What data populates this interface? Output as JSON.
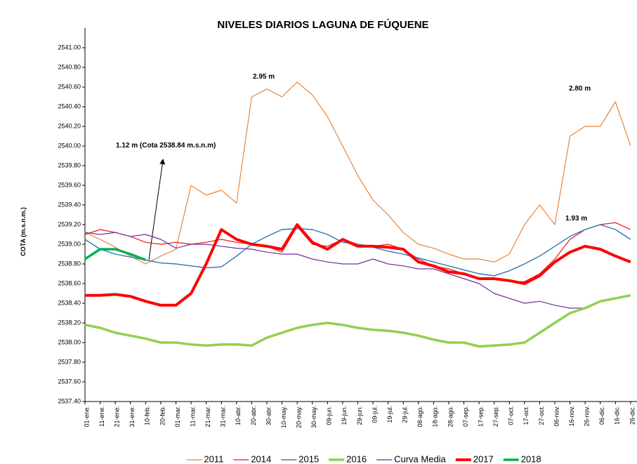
{
  "chart_data": {
    "type": "line",
    "title": "NIVELES DIARIOS LAGUNA DE FÚQUENE",
    "y_label": "COTA (m.s.n.m.)",
    "categories": [
      "01-ene.",
      "11-ene.",
      "21-ene.",
      "31-ene.",
      "10-feb.",
      "20-feb.",
      "01-mar.",
      "11-mar.",
      "21-mar.",
      "31-mar.",
      "10-abr.",
      "20-abr.",
      "30-abr.",
      "10-may.",
      "20-may.",
      "30-may.",
      "09-jun.",
      "19-jun.",
      "29-jun.",
      "09-jul.",
      "19-jul.",
      "29-jul.",
      "08-ago.",
      "18-ago.",
      "28-ago.",
      "07-sep.",
      "17-sep.",
      "27-sep.",
      "07-oct.",
      "17-oct.",
      "27-oct.",
      "06-nov.",
      "16-nov.",
      "26-nov.",
      "06-dic.",
      "16-dic.",
      "26-dic."
    ],
    "ylim": [
      2537.4,
      2541.0
    ],
    "yticks": [
      {
        "value": 2537.4,
        "label": "2537.40"
      },
      {
        "value": 2537.6,
        "label": "2537.60"
      },
      {
        "value": 2537.8,
        "label": "2537.80"
      },
      {
        "value": 2538.0,
        "label": "2538.00"
      },
      {
        "value": 2538.2,
        "label": "2538.20"
      },
      {
        "value": 2538.4,
        "label": "2538.40"
      },
      {
        "value": 2538.6,
        "label": "2538.60"
      },
      {
        "value": 2538.8,
        "label": "2538.80"
      },
      {
        "value": 2539.0,
        "label": "2539.00"
      },
      {
        "value": 2539.2,
        "label": "2539.20"
      },
      {
        "value": 2539.4,
        "label": "2539.40"
      },
      {
        "value": 2539.6,
        "label": "2539.60"
      },
      {
        "value": 2539.8,
        "label": "2539.80"
      },
      {
        "value": 2540.0,
        "label": "2540.00"
      },
      {
        "value": 2540.2,
        "label": "2540.20"
      },
      {
        "value": 2540.4,
        "label": "2540.40"
      },
      {
        "value": 2540.6,
        "label": "2540.60"
      },
      {
        "value": 2540.8,
        "label": "2540.80"
      },
      {
        "value": 2541.0,
        "label": "2541.00"
      }
    ],
    "grid": false,
    "legend": "bottom",
    "series": [
      {
        "name": "2011",
        "color": "#e8853a",
        "line_width": 1.2,
        "values": [
          2539.12,
          2539.05,
          2538.97,
          2538.88,
          2538.8,
          2538.88,
          2538.95,
          2539.6,
          2539.5,
          2539.55,
          2539.42,
          2540.5,
          2540.58,
          2540.5,
          2540.65,
          2540.52,
          2540.3,
          2540.0,
          2539.7,
          2539.45,
          2539.3,
          2539.12,
          2539.0,
          2538.96,
          2538.9,
          2538.85,
          2538.85,
          2538.82,
          2538.9,
          2539.2,
          2539.4,
          2539.2,
          2540.1,
          2540.2,
          2540.2,
          2540.45,
          2540.0
        ]
      },
      {
        "name": "2014",
        "color": "#e8171b",
        "line_width": 1.2,
        "values": [
          2539.1,
          2539.15,
          2539.12,
          2539.08,
          2539.02,
          2539.0,
          2539.02,
          2539.0,
          2539.02,
          2539.05,
          2539.02,
          2539.0,
          2538.98,
          2538.92,
          2539.18,
          2539.0,
          2538.98,
          2539.05,
          2539.0,
          2538.98,
          2539.0,
          2538.95,
          2538.85,
          2538.78,
          2538.75,
          2538.7,
          2538.65,
          2538.65,
          2538.62,
          2538.62,
          2538.7,
          2538.85,
          2539.05,
          2539.15,
          2539.2,
          2539.22,
          2539.15
        ]
      },
      {
        "name": "2015",
        "color": "#7030a0",
        "line_width": 1.2,
        "values": [
          2539.12,
          2539.1,
          2539.12,
          2539.08,
          2539.1,
          2539.05,
          2538.96,
          2539.0,
          2539.0,
          2538.98,
          2538.96,
          2538.95,
          2538.92,
          2538.9,
          2538.9,
          2538.85,
          2538.82,
          2538.8,
          2538.8,
          2538.85,
          2538.8,
          2538.78,
          2538.75,
          2538.75,
          2538.7,
          2538.65,
          2538.6,
          2538.5,
          2538.45,
          2538.4,
          2538.42,
          2538.38,
          2538.35,
          2538.35,
          null,
          null,
          null
        ]
      },
      {
        "name": "2016",
        "color": "#92d050",
        "line_width": 3.5,
        "values": [
          2538.18,
          2538.15,
          2538.1,
          2538.07,
          2538.04,
          2538.0,
          2538.0,
          2537.98,
          2537.97,
          2537.98,
          2537.98,
          2537.97,
          2538.05,
          2538.1,
          2538.15,
          2538.18,
          2538.2,
          2538.18,
          2538.15,
          2538.13,
          2538.12,
          2538.1,
          2538.07,
          2538.03,
          2538.0,
          2538.0,
          2537.96,
          2537.97,
          2537.98,
          2538.0,
          2538.1,
          2538.2,
          2538.3,
          2538.35,
          2538.42,
          2538.45,
          2538.48
        ]
      },
      {
        "name": "Curva Media",
        "color": "#2e75b6",
        "line_width": 1.4,
        "values": [
          2539.05,
          2538.95,
          2538.9,
          2538.87,
          2538.84,
          2538.81,
          2538.8,
          2538.78,
          2538.76,
          2538.77,
          2538.88,
          2539.0,
          2539.08,
          2539.15,
          2539.16,
          2539.15,
          2539.1,
          2539.02,
          2539.0,
          2538.97,
          2538.93,
          2538.9,
          2538.86,
          2538.82,
          2538.78,
          2538.74,
          2538.7,
          2538.68,
          2538.73,
          2538.8,
          2538.88,
          2538.98,
          2539.08,
          2539.15,
          2539.2,
          2539.15,
          2539.05
        ]
      },
      {
        "name": "2017",
        "color": "#ff0000",
        "line_width": 4,
        "values": [
          2538.48,
          2538.48,
          2538.49,
          2538.47,
          2538.42,
          2538.38,
          2538.38,
          2538.5,
          2538.8,
          2539.15,
          2539.05,
          2539.0,
          2538.98,
          2538.95,
          2539.2,
          2539.02,
          2538.95,
          2539.05,
          2538.98,
          2538.98,
          2538.97,
          2538.95,
          2538.82,
          2538.78,
          2538.72,
          2538.7,
          2538.65,
          2538.65,
          2538.63,
          2538.6,
          2538.68,
          2538.82,
          2538.92,
          2538.98,
          2538.95,
          2538.88,
          2538.82
        ]
      },
      {
        "name": "2018",
        "color": "#00b050",
        "line_width": 3.5,
        "values": [
          2538.85,
          2538.95,
          2538.95,
          2538.9,
          2538.84,
          null,
          null,
          null,
          null,
          null,
          null,
          null,
          null,
          null,
          null,
          null,
          null,
          null,
          null,
          null,
          null,
          null,
          null,
          null,
          null,
          null,
          null,
          null,
          null,
          null,
          null,
          null,
          null,
          null,
          null,
          null,
          null
        ]
      }
    ],
    "annotations": [
      "2.95 m",
      "2.80 m",
      "1.93 m",
      "1.12 m (Cota 2538.84 m.s.n.m)"
    ]
  }
}
